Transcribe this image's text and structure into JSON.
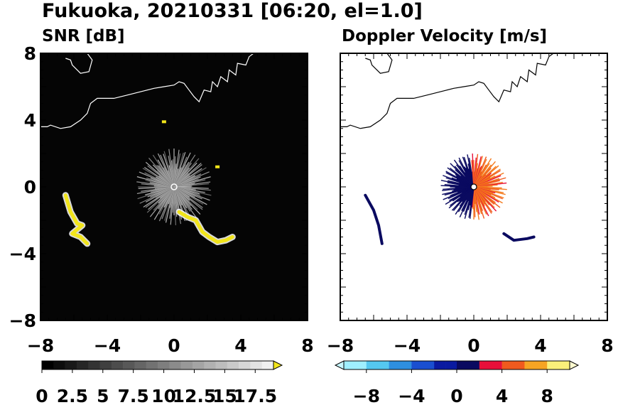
{
  "figure": {
    "title": "Fukuoka, 20210331 [06:20, el=1.0]"
  },
  "chart_data": [
    {
      "type": "heatmap",
      "title": "SNR [dB]",
      "xlim": [
        -8,
        8
      ],
      "ylim": [
        -8,
        8
      ],
      "x_ticks": [
        "-8",
        "-4",
        "0",
        "4",
        "8"
      ],
      "y_ticks": [
        "8",
        "4",
        "0",
        "-4",
        "-8"
      ],
      "background": "#050505",
      "colorbar": {
        "range": [
          0,
          19
        ],
        "levels": 20,
        "colors": [
          "#000000",
          "#ffffff"
        ],
        "extend": "max",
        "extend_color": "#f2e51a",
        "tick_labels": [
          "0",
          "2.5",
          "5",
          "7.5",
          "10",
          "12.5",
          "15",
          "17.5"
        ],
        "tick_values": [
          0,
          2.5,
          5,
          7.5,
          10,
          12.5,
          15,
          17.5
        ]
      },
      "echoes": [
        {
          "name": "near-radar clutter",
          "center": [
            0,
            0
          ],
          "radius_km": 2.3,
          "value": "5-15 dB"
        },
        {
          "name": "strong echo west",
          "points": [
            [
              -6.5,
              -0.5
            ],
            [
              -6.2,
              -1.5
            ],
            [
              -5.8,
              -2.2
            ],
            [
              -5.5,
              -2.3
            ],
            [
              -6.1,
              -2.8
            ],
            [
              -5.6,
              -3.0
            ],
            [
              -5.2,
              -3.4
            ]
          ],
          "value": ">17.5 dB"
        },
        {
          "name": "strong echo south-east",
          "points": [
            [
              0.3,
              -1.5
            ],
            [
              0.8,
              -1.8
            ],
            [
              1.3,
              -2.0
            ],
            [
              1.7,
              -2.7
            ],
            [
              2.1,
              -3.0
            ],
            [
              2.6,
              -3.3
            ],
            [
              3.1,
              -3.2
            ],
            [
              3.5,
              -3.0
            ]
          ],
          "value": ">17.5 dB"
        },
        {
          "name": "small echo",
          "points": [
            [
              -0.6,
              3.9
            ]
          ],
          "value": ">17.5 dB"
        },
        {
          "name": "small echo",
          "points": [
            [
              2.6,
              1.2
            ]
          ],
          "value": ">17.5 dB"
        }
      ]
    },
    {
      "type": "heatmap",
      "title": "Doppler Velocity [m/s]",
      "xlim": [
        -8,
        8
      ],
      "ylim": [
        -8,
        8
      ],
      "x_ticks": [
        "-8",
        "-4",
        "0",
        "4",
        "8"
      ],
      "y_ticks": [
        "8",
        "4",
        "0",
        "-4",
        "-8"
      ],
      "background": "#ffffff",
      "colorbar": {
        "range": [
          -10,
          10
        ],
        "levels": 20,
        "extend": "both",
        "colors": [
          "#9fefff",
          "#55c8f0",
          "#2e8fe0",
          "#1a4fd0",
          "#0a1aa0",
          "#0a0a60",
          "#e8103a",
          "#f05a1e",
          "#f6a423",
          "#faf07a"
        ],
        "tick_labels": [
          "-8",
          "-4",
          "0",
          "4",
          "8"
        ],
        "tick_values": [
          -8,
          -4,
          0,
          4,
          8
        ]
      },
      "echoes": [
        {
          "name": "near-radar outflow",
          "center": [
            0,
            0
          ],
          "radius_km": 2.0,
          "value": "-2 to +6 m/s"
        },
        {
          "name": "echo west",
          "points": [
            [
              -6.5,
              -0.5
            ],
            [
              -6.0,
              -1.4
            ],
            [
              -5.7,
              -2.3
            ],
            [
              -5.5,
              -3.4
            ]
          ],
          "value": "-1 m/s"
        },
        {
          "name": "echo south-east",
          "points": [
            [
              1.8,
              -2.8
            ],
            [
              2.4,
              -3.2
            ],
            [
              3.2,
              -3.1
            ],
            [
              3.6,
              -3.0
            ]
          ],
          "value": "-1 m/s"
        }
      ]
    }
  ]
}
